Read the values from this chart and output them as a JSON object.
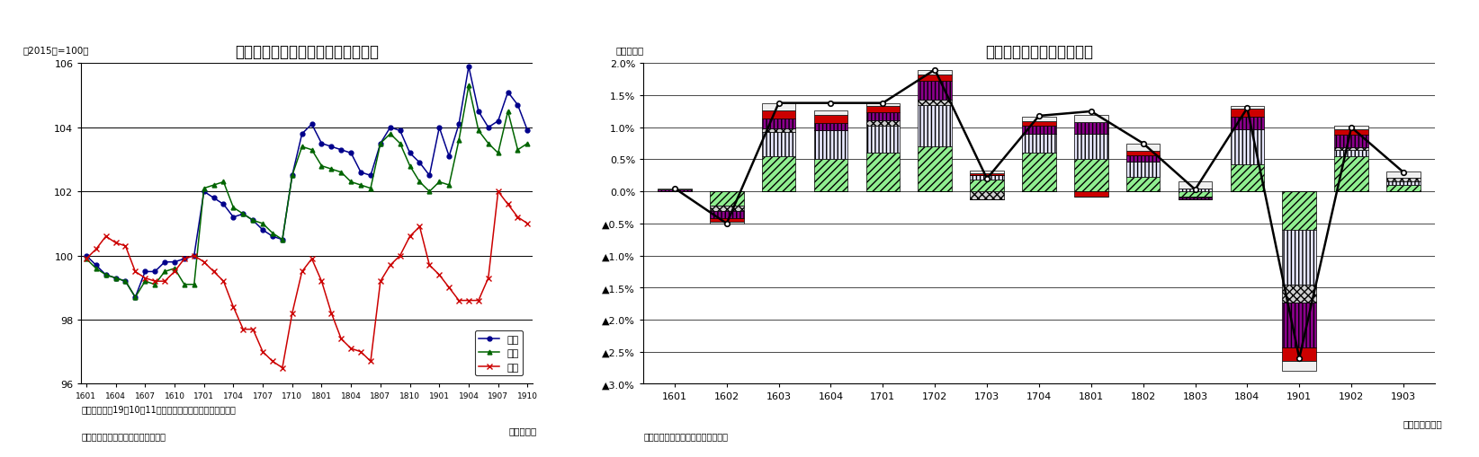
{
  "left_title": "鉱工業生産・出荷・在庫指数の推移",
  "left_ylabel": "（2015年=100）",
  "left_xlabel": "（年・月）",
  "left_note1": "（注）生産の19年10、11月は製造工業生産予測指数で延長",
  "left_note2": "（資料）経済産業省「鉱工業指数」",
  "x_ticks_left": [
    "1601",
    "1604",
    "1607",
    "1610",
    "1701",
    "1704",
    "1707",
    "1710",
    "1801",
    "1804",
    "1807",
    "1810",
    "1901",
    "1904",
    "1907",
    "1910"
  ],
  "production": [
    100.0,
    99.7,
    99.4,
    99.3,
    99.2,
    98.7,
    99.5,
    99.5,
    99.8,
    99.8,
    99.9,
    100.0,
    102.0,
    101.8,
    101.6,
    101.2,
    101.3,
    101.1,
    100.8,
    100.6,
    100.5,
    102.5,
    103.8,
    104.1,
    103.5,
    103.4,
    103.3,
    103.2,
    102.6,
    102.5,
    103.5,
    104.0,
    103.9,
    103.2,
    102.9,
    102.5,
    104.0,
    103.1,
    104.1,
    105.9,
    104.5,
    104.0,
    104.2,
    105.1,
    104.7,
    103.9
  ],
  "shipment": [
    99.9,
    99.6,
    99.4,
    99.3,
    99.2,
    98.7,
    99.2,
    99.1,
    99.5,
    99.6,
    99.1,
    99.1,
    102.1,
    102.2,
    102.3,
    101.5,
    101.3,
    101.1,
    101.0,
    100.7,
    100.5,
    102.5,
    103.4,
    103.3,
    102.8,
    102.7,
    102.6,
    102.3,
    102.2,
    102.1,
    103.5,
    103.8,
    103.5,
    102.8,
    102.3,
    102.0,
    102.3,
    102.2,
    103.6,
    105.3,
    103.9,
    103.5,
    103.2,
    104.5,
    103.3,
    103.5
  ],
  "inventory": [
    99.9,
    100.2,
    100.6,
    100.4,
    100.3,
    99.5,
    99.3,
    99.2,
    99.2,
    99.5,
    99.9,
    100.0,
    99.8,
    99.5,
    99.2,
    98.4,
    97.7,
    97.7,
    97.0,
    96.7,
    96.5,
    98.2,
    99.5,
    99.9,
    99.2,
    98.2,
    97.4,
    97.1,
    97.0,
    96.7,
    99.2,
    99.7,
    100.0,
    100.6,
    100.9,
    99.7,
    99.4,
    99.0,
    98.6,
    98.6,
    98.6,
    99.3,
    102.0,
    101.6,
    101.2,
    101.0
  ],
  "right_title": "鉱工業生産の業種別寄与度",
  "right_ylabel": "（前期比）",
  "right_xlabel": "（年・四半期）",
  "right_note": "（資料）経済産業省「鉱工業指数」",
  "x_labels_right": [
    "1601",
    "1602",
    "1603",
    "1604",
    "1701",
    "1702",
    "1703",
    "1704",
    "1801",
    "1802",
    "1803",
    "1804",
    "1901",
    "1902",
    "1903"
  ],
  "seisan_vals": [
    0.0,
    -0.22,
    0.55,
    0.5,
    0.6,
    0.7,
    0.18,
    0.6,
    0.5,
    0.22,
    -0.08,
    0.42,
    -0.6,
    0.55,
    0.1
  ],
  "yuso_vals": [
    0.0,
    0.0,
    0.38,
    0.45,
    0.43,
    0.65,
    0.08,
    0.3,
    0.4,
    0.25,
    0.05,
    0.55,
    -0.85,
    0.1,
    0.06
  ],
  "denshi_vals": [
    0.0,
    -0.08,
    0.06,
    0.0,
    0.08,
    0.08,
    -0.12,
    0.0,
    0.0,
    0.0,
    -0.02,
    0.0,
    -0.28,
    0.04,
    0.05
  ],
  "denki_vals": [
    0.03,
    -0.12,
    0.15,
    0.12,
    0.12,
    0.3,
    0.0,
    0.12,
    0.18,
    0.1,
    -0.02,
    0.2,
    -0.7,
    0.2,
    0.0
  ],
  "kagaku_vals": [
    0.0,
    -0.05,
    0.12,
    0.12,
    0.1,
    0.1,
    0.02,
    0.07,
    -0.08,
    0.07,
    0.0,
    0.12,
    -0.22,
    0.08,
    0.0
  ],
  "sonota_vals": [
    0.02,
    -0.03,
    0.12,
    0.08,
    0.05,
    0.07,
    0.04,
    0.08,
    0.12,
    0.1,
    0.1,
    0.05,
    -0.15,
    0.05,
    0.1
  ],
  "line_vals": [
    0.05,
    -0.5,
    1.38,
    1.38,
    1.38,
    1.9,
    0.2,
    1.18,
    1.25,
    0.75,
    0.03,
    1.3,
    -2.6,
    1.0,
    0.3
  ],
  "prod_color": "#00008B",
  "ship_color": "#006400",
  "inv_color": "#CC0000"
}
